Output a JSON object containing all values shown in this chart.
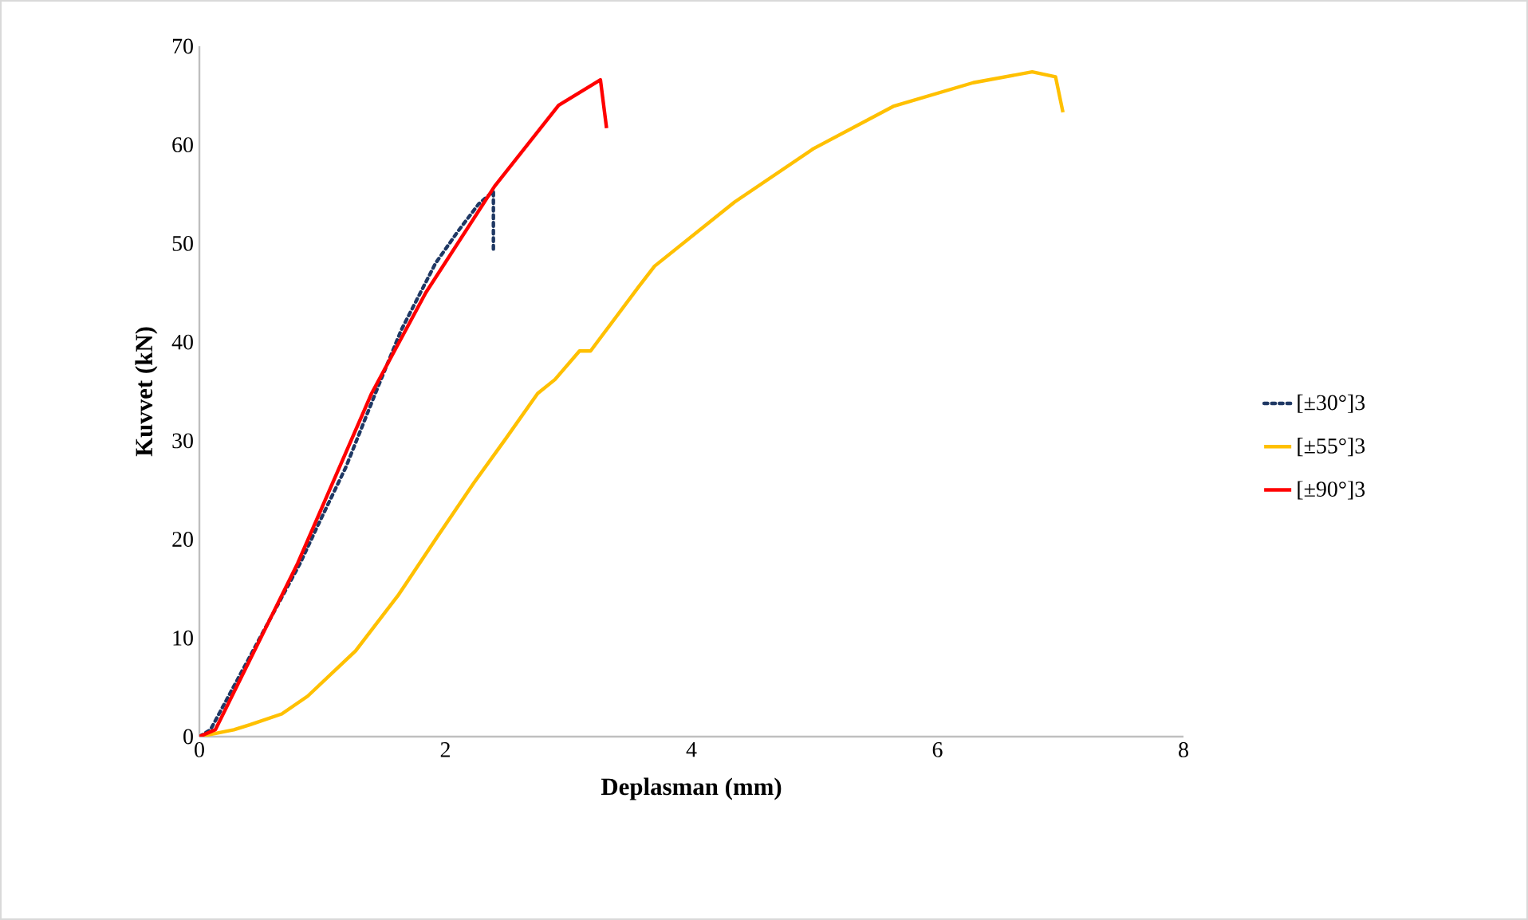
{
  "chart_data": {
    "type": "line",
    "xlabel": "Deplasman (mm)",
    "ylabel": "Kuvvet (kN)",
    "xlim": [
      0,
      8
    ],
    "ylim": [
      0,
      70
    ],
    "xticks": [
      0,
      2,
      4,
      6,
      8
    ],
    "yticks": [
      0,
      10,
      20,
      30,
      40,
      50,
      60,
      70
    ],
    "grid": false,
    "legend": "right",
    "marker": "none",
    "series": [
      {
        "name": "[±30°]3",
        "color": "#1f3864",
        "line_style": "dotted",
        "x": [
          0,
          0.09,
          0.82,
          0.97,
          1.19,
          1.45,
          1.64,
          1.92,
          2.1,
          2.27,
          2.39,
          2.39
        ],
        "values": [
          0,
          0.7,
          17.6,
          21.6,
          27.3,
          35.4,
          41.2,
          48,
          51.2,
          54,
          55.3,
          49.1
        ]
      },
      {
        "name": "[±55°]3",
        "color": "#ffc000",
        "line_style": "solid",
        "x": [
          0,
          0.28,
          0.41,
          0.67,
          0.88,
          1.27,
          1.62,
          1.92,
          2.23,
          2.49,
          2.75,
          2.89,
          3.09,
          3.18,
          3.57,
          3.7,
          4.35,
          4.99,
          5.64,
          6.29,
          6.77,
          6.96,
          7.02
        ],
        "values": [
          0,
          0.7,
          1.2,
          2.3,
          4.1,
          8.7,
          14.4,
          20,
          25.7,
          30.2,
          34.8,
          36.2,
          39.1,
          39.1,
          45.6,
          47.7,
          54.2,
          59.6,
          63.9,
          66.3,
          67.4,
          66.9,
          63.3
        ]
      },
      {
        "name": "[±90°]3",
        "color": "#ff0000",
        "line_style": "solid",
        "x": [
          0,
          0.13,
          0.8,
          1.4,
          1.84,
          2.4,
          2.92,
          3.26,
          3.31
        ],
        "values": [
          0,
          0.7,
          17.6,
          34.8,
          45,
          55.8,
          64,
          66.6,
          61.7
        ]
      }
    ]
  }
}
